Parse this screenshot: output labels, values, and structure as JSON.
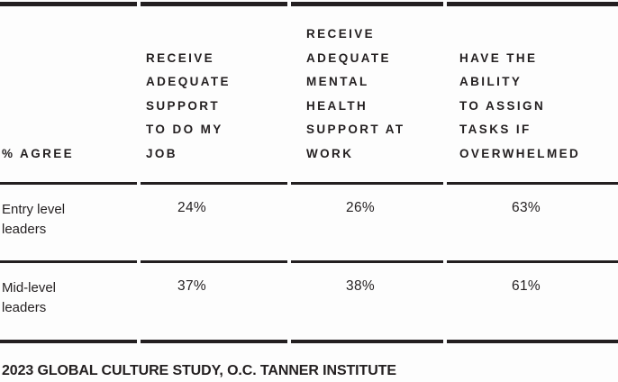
{
  "chart_data": {
    "type": "table",
    "title": "% AGREE",
    "columns": [
      "Receive adequate support to do my job",
      "Receive adequate mental health support at work",
      "Have the ability to assign tasks if overwhelmed"
    ],
    "rows": [
      {
        "label": "Entry level leaders",
        "values_pct": [
          24,
          26,
          63
        ]
      },
      {
        "label": "Mid-level leaders",
        "values_pct": [
          37,
          38,
          61
        ]
      }
    ],
    "units": "% agree",
    "source": "2023 Global Culture Study, O.C. Tanner Institute",
    "layout": "header row bottom-aligned over horizontal rules; values centered under each column header"
  },
  "table": {
    "corner_label": "% AGREE",
    "column_headers": [
      "RECEIVE\nADEQUATE\nSUPPORT\nTO DO MY\nJOB",
      "RECEIVE\nADEQUATE\nMENTAL\nHEALTH\nSUPPORT AT\nWORK",
      "HAVE THE\nABILITY\nTO ASSIGN\nTASKS IF\nOVERWHELMED"
    ],
    "rows": [
      {
        "label": "Entry level\nleaders",
        "values": [
          "24%",
          "26%",
          "63%"
        ]
      },
      {
        "label": "Mid-level\nleaders",
        "values": [
          "37%",
          "38%",
          "61%"
        ]
      }
    ]
  },
  "footer": {
    "source": "2023 GLOBAL CULTURE STUDY, O.C. TANNER INSTITUTE"
  },
  "colors": {
    "text": "#231f20",
    "rule": "#231f20",
    "background": "#fdfdfd"
  }
}
